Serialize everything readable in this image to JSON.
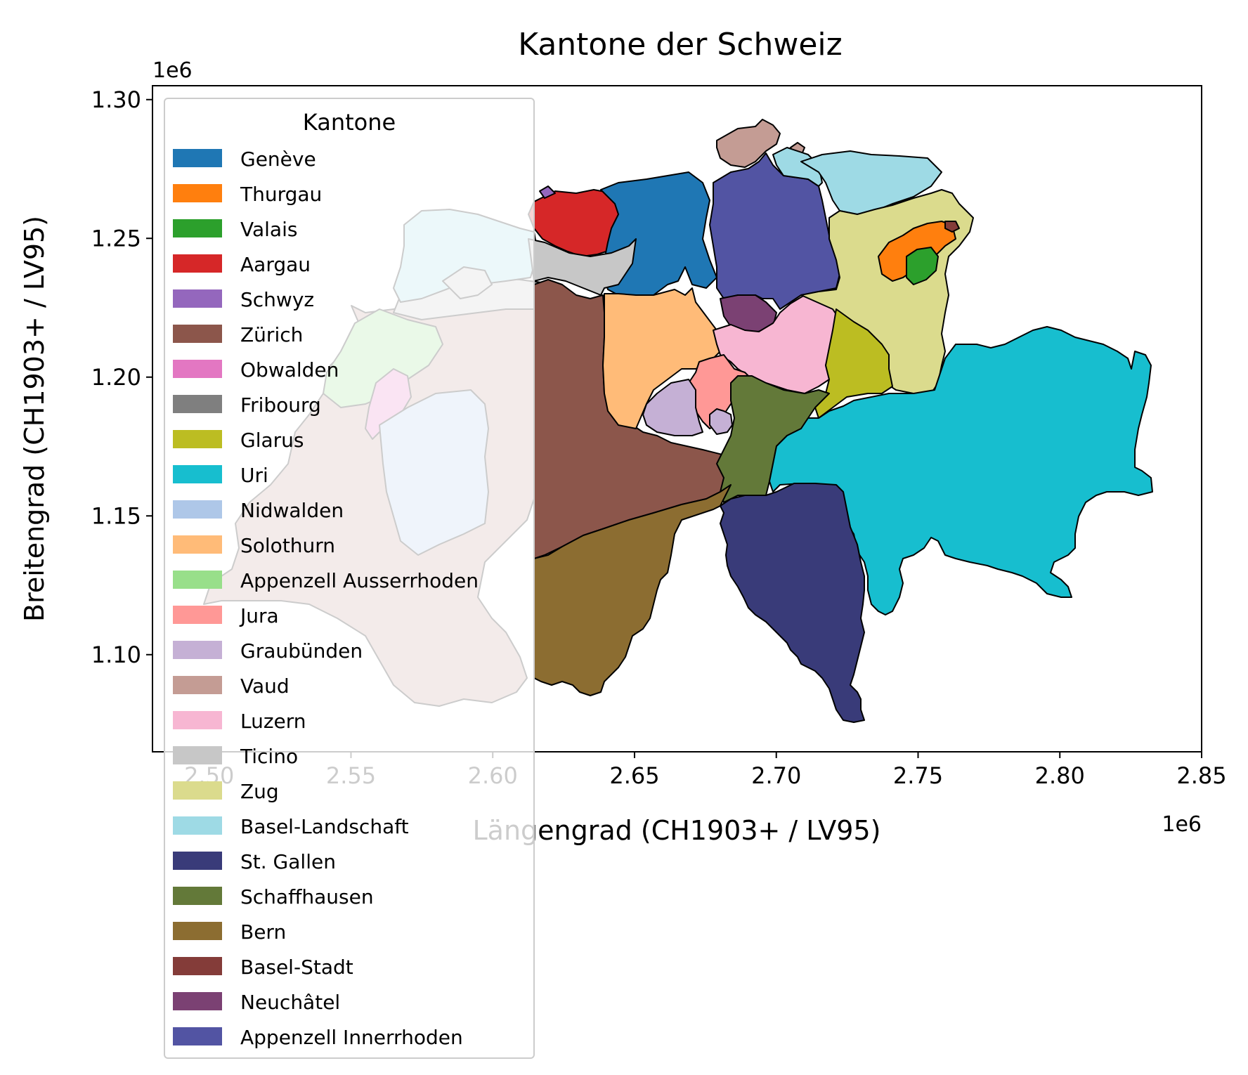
{
  "chart_data": {
    "type": "map",
    "title": "Kantone der Schweiz",
    "xlabel": "Längengrad (CH1903+ / LV95)",
    "ylabel": "Breitengrad (CH1903+ / LV95)",
    "x_offset_label": "1e6",
    "y_offset_label": "1e6",
    "xlim": [
      2.48,
      2.85
    ],
    "ylim": [
      1.065,
      1.305
    ],
    "x_ticks": [
      "2.50",
      "2.55",
      "2.60",
      "2.65",
      "2.70",
      "2.75",
      "2.80",
      "2.85"
    ],
    "y_ticks": [
      "1.10",
      "1.15",
      "1.20",
      "1.25",
      "1.30"
    ],
    "legend": {
      "title": "Kantone",
      "placement": "upper-left",
      "entries": [
        {
          "name": "Genève",
          "color": "#1f77b4"
        },
        {
          "name": "Thurgau",
          "color": "#ff7f0e"
        },
        {
          "name": "Valais",
          "color": "#2ca02c"
        },
        {
          "name": "Aargau",
          "color": "#d62728"
        },
        {
          "name": "Schwyz",
          "color": "#9467bd"
        },
        {
          "name": "Zürich",
          "color": "#8c564b"
        },
        {
          "name": "Obwalden",
          "color": "#e377c2"
        },
        {
          "name": "Fribourg",
          "color": "#7f7f7f"
        },
        {
          "name": "Glarus",
          "color": "#bcbd22"
        },
        {
          "name": "Uri",
          "color": "#17becf"
        },
        {
          "name": "Nidwalden",
          "color": "#aec7e8"
        },
        {
          "name": "Solothurn",
          "color": "#ffbb78"
        },
        {
          "name": "Appenzell Ausserrhoden",
          "color": "#98df8a"
        },
        {
          "name": "Jura",
          "color": "#ff9896"
        },
        {
          "name": "Graubünden",
          "color": "#c5b0d5"
        },
        {
          "name": "Vaud",
          "color": "#c49c94"
        },
        {
          "name": "Luzern",
          "color": "#f7b6d2"
        },
        {
          "name": "Ticino",
          "color": "#c7c7c7"
        },
        {
          "name": "Zug",
          "color": "#dbdb8d"
        },
        {
          "name": "Basel-Landschaft",
          "color": "#9edae5"
        },
        {
          "name": "St. Gallen",
          "color": "#393b79"
        },
        {
          "name": "Schaffhausen",
          "color": "#637939"
        },
        {
          "name": "Bern",
          "color": "#8c6d31"
        },
        {
          "name": "Basel-Stadt",
          "color": "#843c39"
        },
        {
          "name": "Neuchâtel",
          "color": "#7b4173"
        },
        {
          "name": "Appenzell Innerrhoden",
          "color": "#5254a3"
        }
      ]
    },
    "grid": false
  }
}
